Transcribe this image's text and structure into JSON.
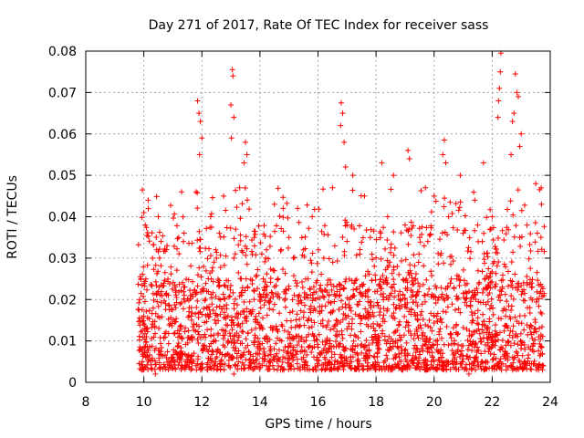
{
  "chart_data": {
    "type": "scatter",
    "title": "Day 271 of 2017, Rate Of TEC Index for receiver sass",
    "xlabel": "GPS time / hours",
    "ylabel": "ROTI / TECUs",
    "xlim": [
      8,
      24
    ],
    "ylim": [
      0,
      0.08
    ],
    "xticks": [
      8,
      10,
      12,
      14,
      16,
      18,
      20,
      22,
      24
    ],
    "yticks": [
      0,
      0.01,
      0.02,
      0.03,
      0.04,
      0.05,
      0.06,
      0.07,
      0.08
    ],
    "xtick_labels": [
      "8",
      "10",
      "12",
      "14",
      "16",
      "18",
      "20",
      "22",
      "24"
    ],
    "ytick_labels": [
      "0",
      "0.01",
      "0.02",
      "0.03",
      "0.04",
      "0.05",
      "0.06",
      "0.07",
      "0.08"
    ],
    "grid": true,
    "marker": "plus",
    "marker_color": "#ff0000",
    "x_range_of_data": [
      9.8,
      23.8
    ],
    "points": [
      [
        11.85,
        0.068
      ],
      [
        11.9,
        0.065
      ],
      [
        11.95,
        0.063
      ],
      [
        12.0,
        0.059
      ],
      [
        11.92,
        0.055
      ],
      [
        13.05,
        0.0755
      ],
      [
        13.07,
        0.074
      ],
      [
        13.0,
        0.067
      ],
      [
        13.1,
        0.064
      ],
      [
        13.02,
        0.059
      ],
      [
        13.5,
        0.058
      ],
      [
        13.55,
        0.055
      ],
      [
        13.45,
        0.053
      ],
      [
        16.8,
        0.0675
      ],
      [
        16.85,
        0.065
      ],
      [
        16.78,
        0.062
      ],
      [
        16.9,
        0.058
      ],
      [
        16.95,
        0.052
      ],
      [
        19.1,
        0.056
      ],
      [
        19.15,
        0.054
      ],
      [
        20.35,
        0.0585
      ],
      [
        20.3,
        0.055
      ],
      [
        20.4,
        0.053
      ],
      [
        22.3,
        0.0795
      ],
      [
        22.28,
        0.075
      ],
      [
        22.25,
        0.071
      ],
      [
        22.22,
        0.068
      ],
      [
        22.2,
        0.064
      ],
      [
        22.8,
        0.0745
      ],
      [
        22.85,
        0.07
      ],
      [
        22.9,
        0.069
      ],
      [
        22.75,
        0.065
      ],
      [
        22.7,
        0.063
      ],
      [
        23.0,
        0.06
      ],
      [
        22.95,
        0.057
      ],
      [
        22.65,
        0.055
      ],
      [
        10.0,
        0.041
      ],
      [
        10.05,
        0.038
      ],
      [
        10.5,
        0.04
      ],
      [
        11.3,
        0.046
      ],
      [
        11.8,
        0.046
      ],
      [
        12.3,
        0.04
      ],
      [
        12.6,
        0.036
      ],
      [
        12.75,
        0.045
      ],
      [
        13.3,
        0.047
      ],
      [
        14.5,
        0.043
      ],
      [
        14.8,
        0.042
      ],
      [
        15.3,
        0.042
      ],
      [
        15.8,
        0.04
      ],
      [
        16.5,
        0.047
      ],
      [
        17.2,
        0.05
      ],
      [
        17.6,
        0.045
      ],
      [
        18.2,
        0.053
      ],
      [
        18.6,
        0.05
      ],
      [
        19.7,
        0.047
      ],
      [
        20.0,
        0.045
      ],
      [
        20.9,
        0.05
      ],
      [
        21.4,
        0.044
      ],
      [
        21.7,
        0.053
      ],
      [
        23.5,
        0.048
      ],
      [
        23.7,
        0.043
      ],
      [
        9.9,
        0.025
      ],
      [
        10.3,
        0.03
      ],
      [
        10.8,
        0.033
      ],
      [
        11.2,
        0.035
      ],
      [
        12.5,
        0.03
      ],
      [
        13.8,
        0.035
      ],
      [
        14.2,
        0.03
      ],
      [
        15.0,
        0.035
      ],
      [
        15.5,
        0.032
      ],
      [
        16.2,
        0.03
      ],
      [
        17.0,
        0.038
      ],
      [
        17.8,
        0.035
      ],
      [
        18.4,
        0.04
      ],
      [
        19.0,
        0.038
      ],
      [
        19.5,
        0.035
      ],
      [
        20.5,
        0.04
      ],
      [
        21.0,
        0.036
      ],
      [
        21.5,
        0.038
      ],
      [
        22.0,
        0.04
      ],
      [
        23.2,
        0.038
      ],
      [
        10.4,
        0.002
      ],
      [
        12.2,
        0.003
      ],
      [
        13.1,
        0.002
      ],
      [
        14.6,
        0.003
      ],
      [
        16.0,
        0.004
      ],
      [
        17.5,
        0.004
      ],
      [
        18.9,
        0.003
      ],
      [
        20.1,
        0.003
      ],
      [
        21.2,
        0.002
      ],
      [
        22.1,
        0.004
      ],
      [
        23.6,
        0.003
      ]
    ]
  }
}
